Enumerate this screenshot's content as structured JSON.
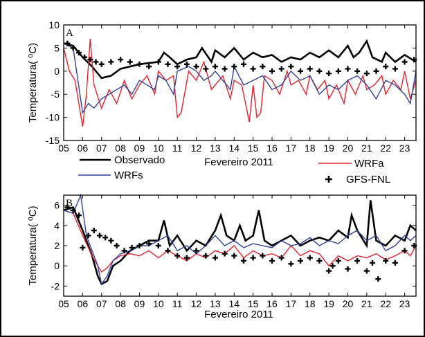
{
  "chart_data": [
    {
      "type": "line",
      "panel": "A",
      "ylabel": "Temperatura( ⁰C)",
      "xlabel": "Fevereiro 2011",
      "xlim": [
        5,
        23.6
      ],
      "ylim": [
        -15,
        10
      ],
      "yticks": [
        "-15",
        "-10",
        "-5",
        "0",
        "5",
        "10"
      ],
      "xticks": [
        "05",
        "06",
        "07",
        "08",
        "09",
        "10",
        "11",
        "12",
        "13",
        "14",
        "15",
        "16",
        "17",
        "18",
        "19",
        "20",
        "21",
        "22",
        "23"
      ],
      "series": [
        {
          "name": "Observado",
          "color": "#000000",
          "style": "line",
          "x": [
            5,
            5.5,
            6,
            6.5,
            7,
            7.5,
            8,
            9,
            10,
            10.3,
            10.6,
            11,
            11.5,
            12,
            12.3,
            12.8,
            13,
            13.5,
            14,
            14.5,
            15,
            15.5,
            16,
            16.5,
            17,
            17.5,
            18,
            18.5,
            19,
            19.5,
            20,
            20.3,
            20.6,
            21,
            21.3,
            21.8,
            22,
            22.5,
            23,
            23.6
          ],
          "y": [
            6,
            5.5,
            3,
            1,
            -1.5,
            -1,
            0.5,
            1.5,
            2,
            4,
            3,
            1.5,
            2.5,
            3,
            5,
            2,
            4.5,
            3,
            5,
            2.5,
            4,
            3,
            3.5,
            2,
            3,
            2.5,
            4,
            3,
            4.5,
            3,
            5.5,
            3,
            4,
            6.5,
            3,
            2,
            4,
            2,
            3.5,
            2
          ]
        },
        {
          "name": "WRFa",
          "color": "#e8202a",
          "style": "line",
          "x": [
            5,
            5.3,
            5.6,
            6,
            6.2,
            6.4,
            6.6,
            7,
            7.4,
            7.8,
            8.2,
            8.6,
            9,
            9.4,
            9.8,
            10,
            10.4,
            10.8,
            11,
            11.2,
            11.6,
            12,
            12.4,
            12.8,
            13,
            13.4,
            13.8,
            14,
            14.4,
            14.8,
            15,
            15.2,
            15.4,
            15.6,
            16,
            16.4,
            16.8,
            17,
            17.4,
            17.8,
            18,
            18.4,
            18.8,
            19,
            19.4,
            19.8,
            20,
            20.4,
            20.8,
            21,
            21.4,
            21.8,
            22,
            22.4,
            22.8,
            23,
            23.3,
            23.6
          ],
          "y": [
            5,
            0,
            -2,
            -12,
            -5,
            7,
            -3,
            -8,
            -4,
            -7,
            -2,
            -6,
            -3,
            -1,
            -5,
            0,
            -2,
            -1,
            -10,
            -9,
            0,
            -2,
            2,
            -4,
            -3,
            -1,
            -6,
            -2,
            -3,
            -11,
            -3,
            -10,
            -9,
            -1,
            -2,
            -5,
            0,
            -3,
            -2,
            -5,
            -1,
            -4,
            -2,
            -6,
            -3,
            -7,
            -2,
            -5,
            -1,
            -4,
            -3,
            -1,
            -5,
            -2,
            -4,
            0,
            -6,
            -2
          ]
        },
        {
          "name": "WRFs",
          "color": "#2f3f9e",
          "style": "line",
          "x": [
            5,
            5.5,
            6,
            6.3,
            6.6,
            7,
            7.4,
            7.8,
            8.2,
            8.6,
            9,
            9.4,
            9.8,
            10,
            10.4,
            10.8,
            11,
            11.6,
            12,
            12.4,
            12.8,
            13,
            13.4,
            13.8,
            14,
            14.5,
            15,
            15.5,
            16,
            16.5,
            17,
            17.5,
            18,
            18.5,
            19,
            19.5,
            20,
            20.5,
            21,
            21.5,
            22,
            22.5,
            23,
            23.3,
            23.6
          ],
          "y": [
            6,
            5,
            -9,
            -7,
            -8,
            -6,
            -5,
            -4,
            -3,
            -5,
            -2,
            -3,
            -4,
            -1,
            -2,
            -5,
            0,
            1,
            0,
            -2,
            -1,
            0,
            -2,
            -4,
            1,
            -3,
            -2,
            -1,
            -4,
            -3,
            0,
            -2,
            -1,
            -5,
            -3,
            -4,
            -2,
            -1,
            -3,
            -6,
            -2,
            -3,
            -5,
            -7,
            0
          ]
        },
        {
          "name": "GFS-FNL",
          "color": "#000000",
          "style": "plus",
          "x": [
            5.2,
            5.5,
            5.8,
            6.1,
            6.4,
            6.7,
            7,
            7.5,
            8,
            8.5,
            9,
            9.5,
            10,
            10.5,
            11,
            11.5,
            12,
            12.5,
            13,
            13.5,
            14,
            14.5,
            15,
            15.5,
            16,
            16.5,
            17,
            17.5,
            18,
            18.5,
            19,
            19.5,
            20,
            20.5,
            21,
            21.5,
            22,
            22.5,
            23,
            23.5
          ],
          "y": [
            6,
            5,
            4,
            3,
            2.5,
            2,
            1.5,
            2,
            2.5,
            2,
            1.5,
            1,
            2,
            1.5,
            1,
            1.5,
            1,
            0.5,
            1,
            0.5,
            1,
            1.5,
            0.5,
            1,
            0,
            0.5,
            1,
            0,
            0.5,
            0,
            -0.5,
            0,
            0.5,
            0,
            -0.5,
            0,
            1,
            0.5,
            2,
            2.5
          ]
        }
      ]
    },
    {
      "type": "line",
      "panel": "B",
      "ylabel": "Temperatura( ⁰C)",
      "xlabel": "Fevereiro 2011",
      "xlim": [
        5,
        23.6
      ],
      "ylim": [
        -3,
        7
      ],
      "yticks": [
        "-2",
        "0",
        "2",
        "4",
        "6"
      ],
      "xticks": [
        "05",
        "06",
        "07",
        "08",
        "09",
        "10",
        "11",
        "12",
        "13",
        "14",
        "15",
        "16",
        "17",
        "18",
        "19",
        "20",
        "21",
        "22",
        "23"
      ],
      "series": [
        {
          "name": "Observado",
          "color": "#000000",
          "style": "line",
          "x": [
            5,
            5.5,
            6,
            6.5,
            6.8,
            7,
            7.3,
            7.6,
            8,
            8.5,
            9,
            9.5,
            10,
            10.3,
            10.6,
            11,
            11.5,
            12,
            12.5,
            13,
            13.3,
            13.6,
            14,
            14.3,
            14.6,
            15,
            15.3,
            15.6,
            16,
            16.5,
            17,
            17.5,
            18,
            18.5,
            19,
            19.5,
            20,
            20.2,
            20.5,
            21,
            21.2,
            21.5,
            22,
            22.5,
            23,
            23.3,
            23.6
          ],
          "y": [
            5.5,
            5.8,
            3.5,
            1,
            -1,
            -1.8,
            -1.5,
            0,
            0.5,
            1.5,
            2,
            2.5,
            2.5,
            4.5,
            2,
            3,
            1.5,
            2.5,
            2,
            3.5,
            5,
            3,
            2.5,
            4,
            2.5,
            3,
            5.5,
            2.5,
            2,
            2.5,
            3,
            2,
            2.5,
            2.8,
            2.5,
            3.5,
            2.8,
            5,
            3.5,
            2,
            6.5,
            2.5,
            2,
            3,
            2.5,
            4,
            3.5
          ]
        },
        {
          "name": "WRFa",
          "color": "#e8202a",
          "style": "line",
          "x": [
            5,
            5.5,
            6,
            6.5,
            6.8,
            7,
            7.3,
            7.6,
            8,
            8.5,
            9,
            9.5,
            10,
            10.5,
            11,
            11.5,
            12,
            12.5,
            13,
            13.5,
            14,
            14.5,
            15,
            15.5,
            16,
            16.5,
            17,
            17.5,
            18,
            18.5,
            19,
            19.5,
            20,
            20.5,
            21,
            21.5,
            22,
            22.5,
            23,
            23.3,
            23.6
          ],
          "y": [
            5.5,
            5.2,
            3,
            1,
            0,
            -0.6,
            -0.2,
            0.5,
            1,
            1.2,
            1,
            1.5,
            0.8,
            1.5,
            1,
            0.5,
            1.2,
            0.8,
            1.5,
            1.2,
            2,
            0.8,
            1.5,
            1,
            1.2,
            0.8,
            2,
            1,
            1.5,
            1.2,
            0,
            1,
            0.5,
            1,
            0.8,
            1.2,
            0.6,
            1,
            1.5,
            1,
            2
          ]
        },
        {
          "name": "WRFs",
          "color": "#2f3f9e",
          "style": "line",
          "x": [
            5,
            5.5,
            5.9,
            6.2,
            6.5,
            6.8,
            7,
            7.3,
            7.6,
            8,
            8.5,
            9,
            9.5,
            10,
            10.5,
            11,
            11.5,
            12,
            12.5,
            13,
            13.5,
            14,
            14.5,
            15,
            15.5,
            16,
            16.5,
            17,
            17.5,
            18,
            18.5,
            19,
            19.5,
            20,
            20.5,
            21,
            21.5,
            22,
            22.5,
            23,
            23.3,
            23.6
          ],
          "y": [
            5.5,
            5.2,
            7,
            3,
            1.5,
            0,
            -1.8,
            -1,
            0.5,
            1.2,
            1.5,
            2,
            2,
            2.5,
            3,
            1.5,
            2,
            1.2,
            2,
            3,
            2,
            2.5,
            1.8,
            2.2,
            2,
            1.8,
            2.5,
            2,
            2.2,
            2.8,
            2,
            2.5,
            2.2,
            3,
            3.5,
            2.5,
            3,
            1.5,
            2,
            3,
            2.5,
            3
          ]
        },
        {
          "name": "GFS-FNL",
          "color": "#000000",
          "style": "plus",
          "x": [
            5.2,
            5.5,
            5.8,
            6,
            6.3,
            6.6,
            6.9,
            7.2,
            7.5,
            7.8,
            8.2,
            8.6,
            9,
            9.5,
            10,
            10.5,
            11,
            11.5,
            12,
            12.5,
            13,
            13.5,
            14,
            14.5,
            15,
            15.5,
            16,
            16.5,
            17,
            17.5,
            18,
            18.5,
            19,
            19.2,
            19.5,
            20,
            20.5,
            21,
            21.3,
            21.6,
            22,
            22.5,
            23,
            23.5
          ],
          "y": [
            5.8,
            5.5,
            5,
            1.8,
            3,
            3.5,
            3,
            2.8,
            2.5,
            2,
            1.5,
            1.8,
            2,
            2.2,
            2,
            1.5,
            1,
            0.8,
            1.5,
            1,
            0.8,
            1.2,
            1,
            0.5,
            0.8,
            1,
            0.5,
            0.8,
            0.2,
            0.5,
            0.8,
            0.5,
            -0.5,
            0,
            0.5,
            -0.3,
            0.5,
            -0.5,
            0.3,
            -1.3,
            0.5,
            0.3,
            1.5,
            2
          ]
        }
      ]
    }
  ],
  "legend": {
    "entries": [
      {
        "label": "Observado",
        "color": "#000000",
        "style": "line"
      },
      {
        "label": "WRFa",
        "color": "#e8202a",
        "style": "line"
      },
      {
        "label": "WRFs",
        "color": "#2f3f9e",
        "style": "line"
      },
      {
        "label": "GFS-FNL",
        "color": "#000000",
        "style": "plus"
      }
    ]
  }
}
